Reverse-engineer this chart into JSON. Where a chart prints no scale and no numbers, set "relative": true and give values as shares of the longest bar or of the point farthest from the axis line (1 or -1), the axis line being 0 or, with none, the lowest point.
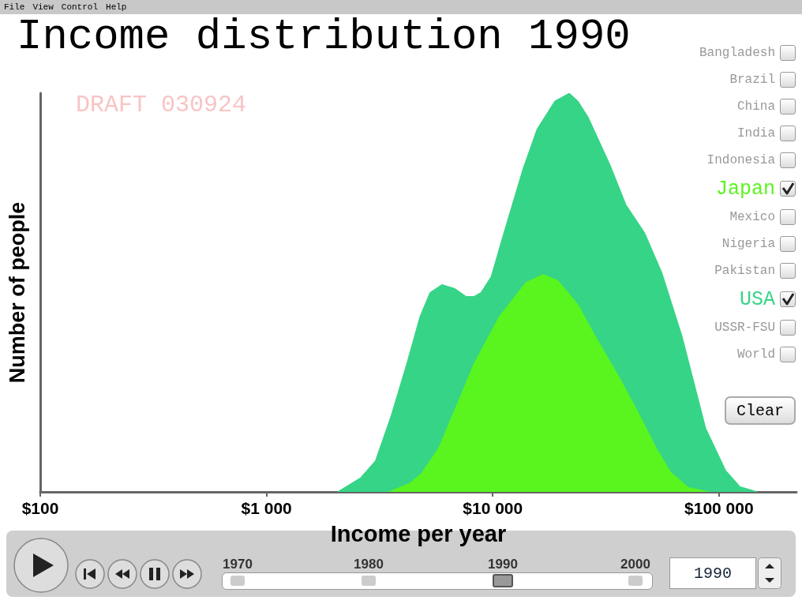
{
  "chart_data": {
    "type": "area",
    "title": "Income distribution 1990",
    "xlabel": "Income per year",
    "ylabel": "Number of people",
    "relative": true,
    "log": "x",
    "legend": "right",
    "grid": false,
    "xlim": [
      100,
      220000
    ],
    "xticks": [
      {
        "value": 100,
        "label": "$100"
      },
      {
        "value": 1000,
        "label": "$1 000"
      },
      {
        "value": 10000,
        "label": "$10 000"
      },
      {
        "value": 100000,
        "label": "$100 000"
      }
    ],
    "series": [
      {
        "name": "USA",
        "color": "#36d486",
        "x": [
          2060,
          2600,
          3030,
          3550,
          4160,
          4770,
          5280,
          5960,
          6800,
          7630,
          8260,
          8870,
          9840,
          11200,
          13600,
          15700,
          18800,
          21800,
          23800,
          26400,
          33000,
          38800,
          46900,
          55900,
          68700,
          87300,
          107000,
          124000,
          148000
        ],
        "values": [
          0,
          0.035,
          0.078,
          0.19,
          0.32,
          0.44,
          0.5,
          0.52,
          0.51,
          0.49,
          0.49,
          0.5,
          0.54,
          0.65,
          0.81,
          0.91,
          0.98,
          1,
          0.98,
          0.94,
          0.82,
          0.72,
          0.65,
          0.55,
          0.39,
          0.16,
          0.054,
          0.013,
          0
        ]
      },
      {
        "name": "Japan",
        "color": "#5af51e",
        "x": [
          3490,
          4300,
          4840,
          5770,
          7330,
          8240,
          10700,
          14000,
          16700,
          19400,
          23800,
          28400,
          36000,
          42900,
          52800,
          61000,
          73300,
          89900
        ],
        "values": [
          0,
          0.022,
          0.046,
          0.11,
          0.25,
          0.32,
          0.44,
          0.525,
          0.545,
          0.53,
          0.47,
          0.39,
          0.29,
          0.21,
          0.11,
          0.05,
          0.011,
          0
        ]
      }
    ],
    "annotations": [
      "DRAFT 030924",
      "File",
      "View",
      "Control",
      "Help",
      "Bangladesh",
      "Brazil",
      "China",
      "India",
      "Indonesia",
      "Mexico",
      "Nigeria",
      "Pakistan",
      "USSR-FSU",
      "World",
      "Clear",
      "1970",
      "1980",
      "1990",
      "2000",
      "1990"
    ]
  }
}
